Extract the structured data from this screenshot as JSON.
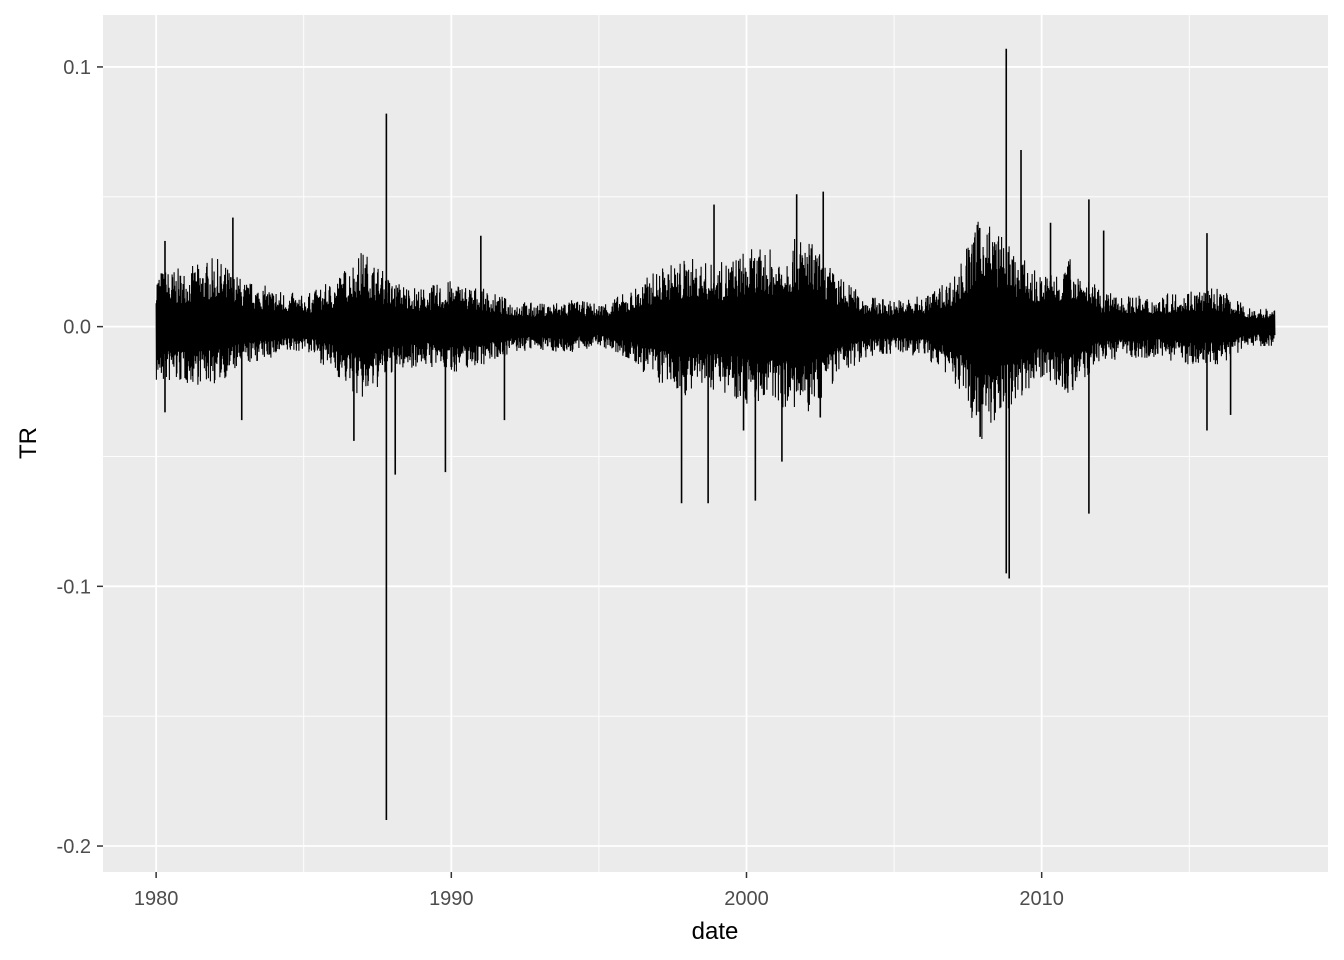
{
  "chart_data": {
    "type": "line",
    "title": "",
    "xlabel": "date",
    "ylabel": "TR",
    "xlim": [
      1978.2,
      2019.7
    ],
    "ylim": [
      -0.21,
      0.12
    ],
    "x_ticks": [
      1980,
      1990,
      2000,
      2010
    ],
    "x_tick_labels": [
      "1980",
      "1990",
      "2000",
      "2010"
    ],
    "y_ticks": [
      0.1,
      0.0,
      -0.1,
      -0.2
    ],
    "y_tick_labels": [
      "0.1",
      "0.0",
      "-0.1",
      "-0.2"
    ],
    "grid": true,
    "line_color": "#000000",
    "panel_background": "#EBEBEB",
    "series_range": [
      1980.0,
      2017.9
    ],
    "typical_band_by_year": {
      "years": [
        1980,
        1981,
        1982,
        1983,
        1984,
        1985,
        1986,
        1987,
        1988,
        1989,
        1990,
        1991,
        1992,
        1993,
        1994,
        1995,
        1996,
        1997,
        1998,
        1999,
        2000,
        2001,
        2002,
        2003,
        2004,
        2005,
        2006,
        2007,
        2008,
        2009,
        2010,
        2011,
        2012,
        2013,
        2014,
        2015,
        2016,
        2017
      ],
      "high": [
        0.015,
        0.015,
        0.018,
        0.012,
        0.01,
        0.008,
        0.012,
        0.02,
        0.012,
        0.01,
        0.012,
        0.01,
        0.007,
        0.006,
        0.007,
        0.006,
        0.009,
        0.015,
        0.018,
        0.016,
        0.02,
        0.02,
        0.024,
        0.014,
        0.008,
        0.007,
        0.008,
        0.013,
        0.03,
        0.02,
        0.013,
        0.018,
        0.009,
        0.008,
        0.008,
        0.01,
        0.01,
        0.005
      ],
      "low": [
        -0.015,
        -0.015,
        -0.015,
        -0.01,
        -0.008,
        -0.006,
        -0.012,
        -0.02,
        -0.012,
        -0.01,
        -0.012,
        -0.01,
        -0.007,
        -0.006,
        -0.007,
        -0.005,
        -0.009,
        -0.015,
        -0.018,
        -0.016,
        -0.02,
        -0.02,
        -0.024,
        -0.014,
        -0.008,
        -0.007,
        -0.008,
        -0.014,
        -0.03,
        -0.02,
        -0.013,
        -0.018,
        -0.009,
        -0.008,
        -0.008,
        -0.01,
        -0.01,
        -0.005
      ]
    },
    "notable_points": [
      {
        "x": 1980.3,
        "y": 0.033
      },
      {
        "x": 1980.3,
        "y": -0.033
      },
      {
        "x": 1982.6,
        "y": 0.042
      },
      {
        "x": 1982.9,
        "y": -0.036
      },
      {
        "x": 1986.7,
        "y": -0.044
      },
      {
        "x": 1987.8,
        "y": 0.082
      },
      {
        "x": 1987.8,
        "y": -0.19
      },
      {
        "x": 1988.1,
        "y": -0.057
      },
      {
        "x": 1989.8,
        "y": -0.056
      },
      {
        "x": 1991.0,
        "y": 0.035
      },
      {
        "x": 1991.8,
        "y": -0.036
      },
      {
        "x": 1997.8,
        "y": -0.068
      },
      {
        "x": 1998.7,
        "y": -0.068
      },
      {
        "x": 1998.9,
        "y": 0.047
      },
      {
        "x": 1999.9,
        "y": -0.04
      },
      {
        "x": 2000.3,
        "y": -0.067
      },
      {
        "x": 2001.2,
        "y": -0.052
      },
      {
        "x": 2001.7,
        "y": 0.051
      },
      {
        "x": 2002.5,
        "y": -0.035
      },
      {
        "x": 2002.6,
        "y": 0.052
      },
      {
        "x": 2007.9,
        "y": 0.038
      },
      {
        "x": 2008.8,
        "y": 0.107
      },
      {
        "x": 2008.8,
        "y": -0.095
      },
      {
        "x": 2008.9,
        "y": -0.097
      },
      {
        "x": 2009.3,
        "y": 0.068
      },
      {
        "x": 2010.3,
        "y": 0.04
      },
      {
        "x": 2011.6,
        "y": 0.049
      },
      {
        "x": 2011.6,
        "y": -0.072
      },
      {
        "x": 2012.1,
        "y": 0.037
      },
      {
        "x": 2015.6,
        "y": 0.036
      },
      {
        "x": 2015.6,
        "y": -0.04
      },
      {
        "x": 2016.4,
        "y": -0.034
      }
    ]
  }
}
